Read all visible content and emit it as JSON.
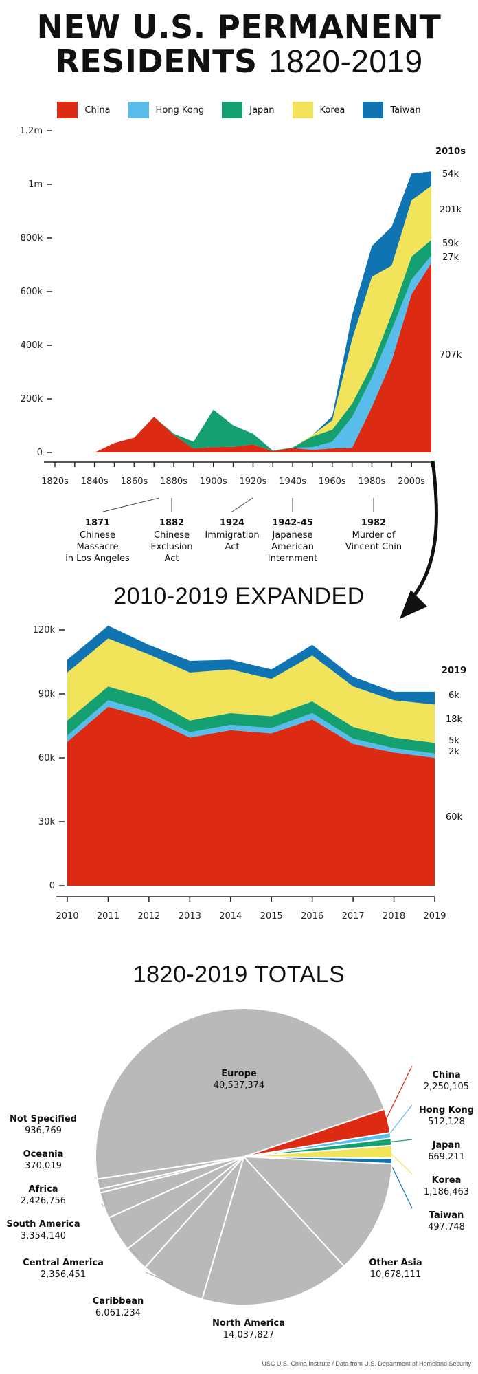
{
  "title": {
    "line1": "NEW U.S. PERMANENT",
    "line2_bold": "RESIDENTS",
    "line2_thin": "1820-2019"
  },
  "colors": {
    "China": "#dd2a12",
    "Hong Kong": "#58bdea",
    "Japan": "#15a072",
    "Korea": "#f1e45a",
    "Taiwan": "#1174b2"
  },
  "legend": [
    "China",
    "Hong Kong",
    "Japan",
    "Korea",
    "Taiwan"
  ],
  "expanded_title": "2010-2019 EXPANDED",
  "totals_title": "1820-2019 TOTALS",
  "source": "USC U.S.-China Institute / Data from U.S. Department of Homeland Security",
  "chart_data": [
    {
      "type": "area",
      "title": "NEW U.S. PERMANENT RESIDENTS 1820-2019",
      "stacked": true,
      "x": [
        "1820s",
        "1830s",
        "1840s",
        "1850s",
        "1860s",
        "1870s",
        "1880s",
        "1890s",
        "1900s",
        "1910s",
        "1920s",
        "1930s",
        "1940s",
        "1950s",
        "1960s",
        "1970s",
        "1980s",
        "1990s",
        "2000s",
        "2010s"
      ],
      "x_tick_labels": [
        "1820s",
        "1840s",
        "1860s",
        "1880s",
        "1900s",
        "1920s",
        "1940s",
        "1960s",
        "1980s",
        "2000s"
      ],
      "y_ticks": [
        "0",
        "200k",
        "400k",
        "600k",
        "800k",
        "1m",
        "1.2m"
      ],
      "ylim": [
        0,
        1200000
      ],
      "series": [
        {
          "name": "China",
          "values": [
            0,
            0,
            0,
            35000,
            55000,
            133000,
            65000,
            15000,
            20000,
            21000,
            30000,
            5000,
            17000,
            10000,
            15000,
            17000,
            170000,
            342000,
            590000,
            707000
          ]
        },
        {
          "name": "Hong Kong",
          "values": [
            0,
            0,
            0,
            0,
            0,
            0,
            0,
            0,
            0,
            0,
            0,
            0,
            0,
            10000,
            25000,
            115000,
            110000,
            115000,
            55000,
            27000
          ]
        },
        {
          "name": "Japan",
          "values": [
            0,
            0,
            0,
            0,
            0,
            0,
            5000,
            25000,
            140000,
            80000,
            40000,
            2000,
            2000,
            40000,
            45000,
            50000,
            45000,
            60000,
            85000,
            59000
          ]
        },
        {
          "name": "Korea",
          "values": [
            0,
            0,
            0,
            0,
            0,
            0,
            0,
            0,
            0,
            0,
            0,
            0,
            0,
            5000,
            35000,
            240000,
            330000,
            180000,
            210000,
            201000
          ]
        },
        {
          "name": "Taiwan",
          "values": [
            0,
            0,
            0,
            0,
            0,
            0,
            0,
            0,
            0,
            0,
            0,
            0,
            0,
            0,
            15000,
            90000,
            115000,
            145000,
            100000,
            54000
          ]
        }
      ],
      "end_labels": {
        "header": "2010s",
        "Taiwan": "54k",
        "Korea": "201k",
        "Japan": "59k",
        "Hong Kong": "27k",
        "China": "707k"
      },
      "annotations": [
        {
          "year": "1871",
          "text": [
            "Chinese",
            "Massacre",
            "in Los Angeles"
          ]
        },
        {
          "year": "1882",
          "text": [
            "Chinese",
            "Exclusion",
            "Act"
          ]
        },
        {
          "year": "1924",
          "text": [
            "Immigration",
            "Act"
          ]
        },
        {
          "year": "1942-45",
          "text": [
            "Japanese",
            "American",
            "Internment"
          ]
        },
        {
          "year": "1982",
          "text": [
            "Murder of",
            "Vincent Chin"
          ]
        }
      ]
    },
    {
      "type": "area",
      "title": "2010-2019 EXPANDED",
      "stacked": true,
      "x": [
        "2010",
        "2011",
        "2012",
        "2013",
        "2014",
        "2015",
        "2016",
        "2017",
        "2018",
        "2019"
      ],
      "y_ticks": [
        "0",
        "30k",
        "60k",
        "90k",
        "120k"
      ],
      "ylim": [
        0,
        120000
      ],
      "series": [
        {
          "name": "China",
          "values": [
            67500,
            84000,
            78500,
            69500,
            73000,
            71500,
            78000,
            66500,
            62500,
            60000
          ]
        },
        {
          "name": "Hong Kong",
          "values": [
            3000,
            3000,
            3000,
            2500,
            2500,
            2500,
            3000,
            2500,
            2000,
            2000
          ]
        },
        {
          "name": "Japan",
          "values": [
            7000,
            6500,
            6500,
            5500,
            5500,
            5500,
            5500,
            5500,
            5000,
            5000
          ]
        },
        {
          "name": "Korea",
          "values": [
            22500,
            22500,
            20500,
            22500,
            20500,
            17500,
            21500,
            19000,
            17500,
            18000
          ]
        },
        {
          "name": "Taiwan",
          "values": [
            6000,
            6000,
            4500,
            5500,
            4500,
            4500,
            5000,
            4500,
            4000,
            6000
          ]
        }
      ],
      "end_labels": {
        "header": "2019",
        "Taiwan": "6k",
        "Korea": "18k",
        "Japan": "5k",
        "Hong Kong": "2k",
        "China": "60k"
      }
    },
    {
      "type": "pie",
      "title": "1820-2019 TOTALS",
      "slices": [
        {
          "label": "China",
          "value": 2250105,
          "display": "2,250,105",
          "color": "#dd2a12"
        },
        {
          "label": "Hong Kong",
          "value": 512128,
          "display": "512,128",
          "color": "#58bdea"
        },
        {
          "label": "Japan",
          "value": 669211,
          "display": "669,211",
          "color": "#15a072"
        },
        {
          "label": "Korea",
          "value": 1186463,
          "display": "1,186,463",
          "color": "#f1e45a"
        },
        {
          "label": "Taiwan",
          "value": 497748,
          "display": "497,748",
          "color": "#1174b2"
        },
        {
          "label": "Other Asia",
          "value": 10678111,
          "display": "10,678,111",
          "color": "#b9b9b9"
        },
        {
          "label": "North America",
          "value": 14037827,
          "display": "14,037,827",
          "color": "#b9b9b9"
        },
        {
          "label": "Caribbean",
          "value": 6061234,
          "display": "6,061,234",
          "color": "#b9b9b9"
        },
        {
          "label": "Central America",
          "value": 2356451,
          "display": "2,356,451",
          "color": "#b9b9b9"
        },
        {
          "label": "South America",
          "value": 3354140,
          "display": "3,354,140",
          "color": "#b9b9b9"
        },
        {
          "label": "Africa",
          "value": 2426756,
          "display": "2,426,756",
          "color": "#b9b9b9"
        },
        {
          "label": "Oceania",
          "value": 370019,
          "display": "370,019",
          "color": "#b9b9b9"
        },
        {
          "label": "Not Specified",
          "value": 936769,
          "display": "936,769",
          "color": "#b9b9b9"
        },
        {
          "label": "Europe",
          "value": 40537374,
          "display": "40,537,374",
          "color": "#b9b9b9"
        }
      ]
    }
  ]
}
